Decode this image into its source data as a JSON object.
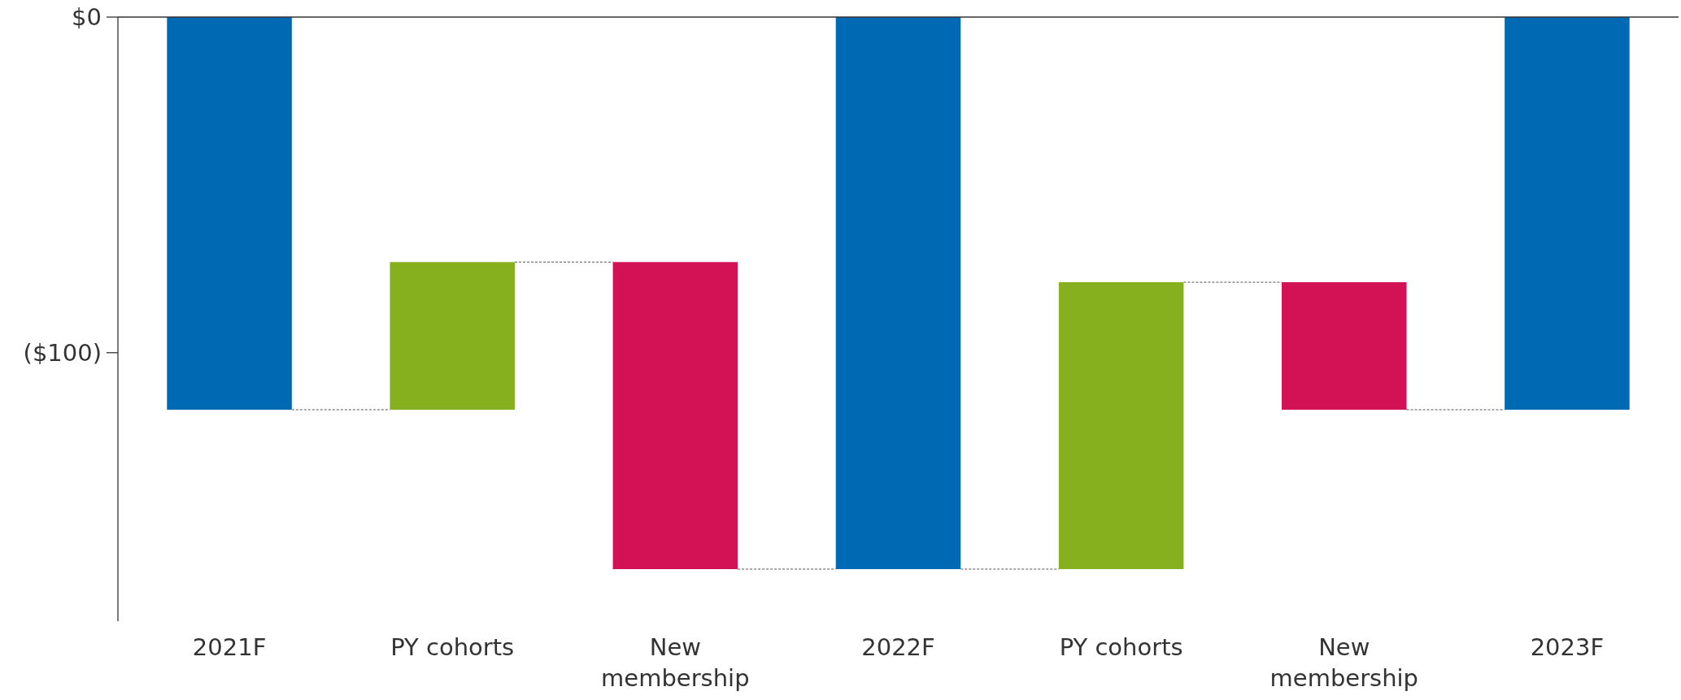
{
  "chart_data": {
    "type": "bar",
    "categories": [
      "2021F",
      "PY cohorts",
      "New membership",
      "2022F",
      "PY cohorts",
      "New membership",
      "2023F"
    ],
    "values": [
      -117,
      44,
      -91.5,
      -164.5,
      85.5,
      -38,
      -117
    ],
    "base": [
      0,
      -117,
      -73,
      0,
      -164.5,
      -79,
      0
    ],
    "colors": [
      "#0069b4",
      "#86b01d",
      "#d31155",
      "#0069b4",
      "#86b01d",
      "#d31155",
      "#0069b4"
    ],
    "ylim": [
      -180,
      0
    ],
    "yticks": [
      {
        "value": 0,
        "label": "$0"
      },
      {
        "value": -100,
        "label": "($100)"
      }
    ],
    "grid": false
  }
}
